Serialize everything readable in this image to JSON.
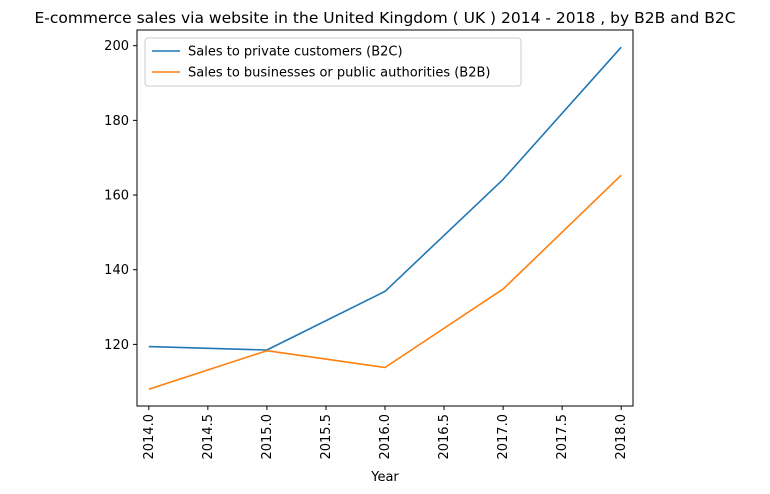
{
  "chart_data": {
    "type": "line",
    "title": "E-commerce sales via website in the United Kingdom ( UK ) 2014 - 2018 , by B2B and B2C",
    "xlabel": "Year",
    "ylabel": "",
    "x": [
      2014,
      2015,
      2016,
      2017,
      2018
    ],
    "xlim": [
      2013.9,
      2018.1
    ],
    "ylim": [
      103.5,
      204.2
    ],
    "x_ticks": [
      "2014.0",
      "2014.5",
      "2015.0",
      "2015.5",
      "2016.0",
      "2016.5",
      "2017.0",
      "2017.5",
      "2018.0"
    ],
    "x_tick_values": [
      2014.0,
      2014.5,
      2015.0,
      2015.5,
      2016.0,
      2016.5,
      2017.0,
      2017.5,
      2018.0
    ],
    "y_ticks": [
      "120",
      "140",
      "160",
      "180",
      "200"
    ],
    "y_tick_values": [
      120,
      140,
      160,
      180,
      200
    ],
    "grid": false,
    "legend_position": "top-left",
    "series": [
      {
        "name": "Sales to private customers (B2C)",
        "color": "#1f77b4",
        "values": [
          119.4,
          118.5,
          134.2,
          164.2,
          199.6
        ]
      },
      {
        "name": "Sales to businesses or public authorities (B2B)",
        "color": "#ff7f0e",
        "values": [
          108.0,
          118.3,
          113.8,
          134.8,
          165.3
        ]
      }
    ]
  }
}
